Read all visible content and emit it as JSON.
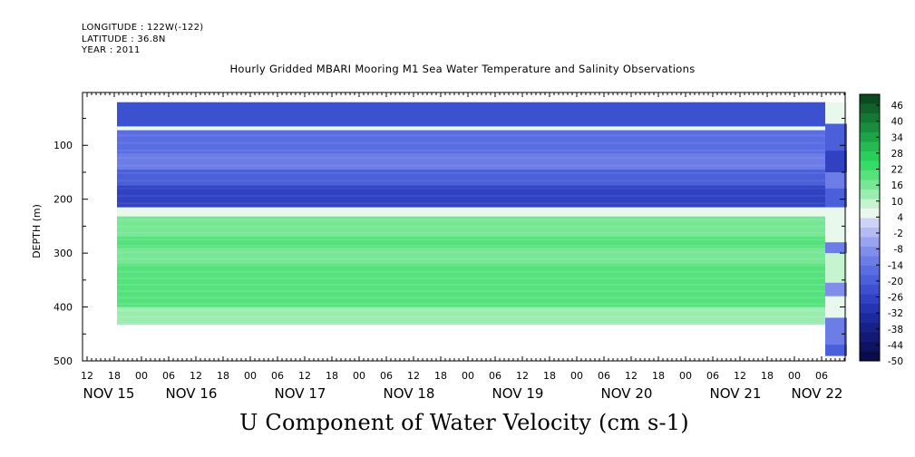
{
  "header": {
    "longitude": "LONGITUDE : 122W(-122)",
    "latitude": "LATITUDE : 36.8N",
    "year": "YEAR : 2011",
    "plot_title": "Hourly Gridded MBARI Mooring M1 Sea Water Temperature and Salinity Observations",
    "main_title": "U Component of Water Velocity (cm s-1)"
  },
  "chart_data": {
    "type": "heatmap",
    "ylabel": "DEPTH (m)",
    "xlabel": "",
    "ylim": [
      500,
      10
    ],
    "y_ticks": [
      100,
      200,
      300,
      400,
      500
    ],
    "hour_ticks": [
      "12",
      "18",
      "00",
      "06",
      "12",
      "18",
      "00",
      "06",
      "12",
      "18",
      "00",
      "06",
      "12",
      "18",
      "00",
      "06",
      "12",
      "18",
      "00",
      "06",
      "12",
      "18",
      "00",
      "06",
      "12",
      "18",
      "00",
      "06"
    ],
    "date_labels": [
      "NOV 15",
      "NOV 16",
      "NOV 17",
      "NOV 18",
      "NOV 19",
      "NOV 20",
      "NOV 21",
      "NOV 22"
    ],
    "colorbar_labels": [
      "46",
      "40",
      "34",
      "28",
      "22",
      "16",
      "10",
      "4",
      "-2",
      "-8",
      "-14",
      "-20",
      "-26",
      "-32",
      "-38",
      "-44",
      "-50"
    ],
    "colorbar_colors": [
      "#0c4a1f",
      "#11612a",
      "#157734",
      "#198d3e",
      "#1ea448",
      "#23bb52",
      "#28cf5a",
      "#35dc66",
      "#55e27c",
      "#76e794",
      "#9aedaf",
      "#c6f3d0",
      "#e8f8ec",
      "#cfd3f7",
      "#b3bbf2",
      "#99a4ee",
      "#808eea",
      "#6c7de8",
      "#5a6ee3",
      "#4a5fd9",
      "#3c51cf",
      "#3042c2",
      "#2535b2",
      "#1c2a9f",
      "#16218a",
      "#121a74",
      "#0e135f",
      "#0a0c4a"
    ],
    "depth_bands": [
      {
        "from": 20,
        "to": 65,
        "value": -24
      },
      {
        "from": 65,
        "to": 72,
        "value": 3
      },
      {
        "from": 72,
        "to": 115,
        "value": -18
      },
      {
        "from": 115,
        "to": 145,
        "value": -14
      },
      {
        "from": 145,
        "to": 175,
        "value": -20
      },
      {
        "from": 175,
        "to": 215,
        "value": -26
      },
      {
        "from": 215,
        "to": 232,
        "value": 6
      },
      {
        "from": 232,
        "to": 270,
        "value": 14
      },
      {
        "from": 270,
        "to": 290,
        "value": 18
      },
      {
        "from": 290,
        "to": 320,
        "value": 16
      },
      {
        "from": 320,
        "to": 360,
        "value": 20
      },
      {
        "from": 360,
        "to": 400,
        "value": 19
      },
      {
        "from": 400,
        "to": 432,
        "value": 13
      }
    ]
  }
}
